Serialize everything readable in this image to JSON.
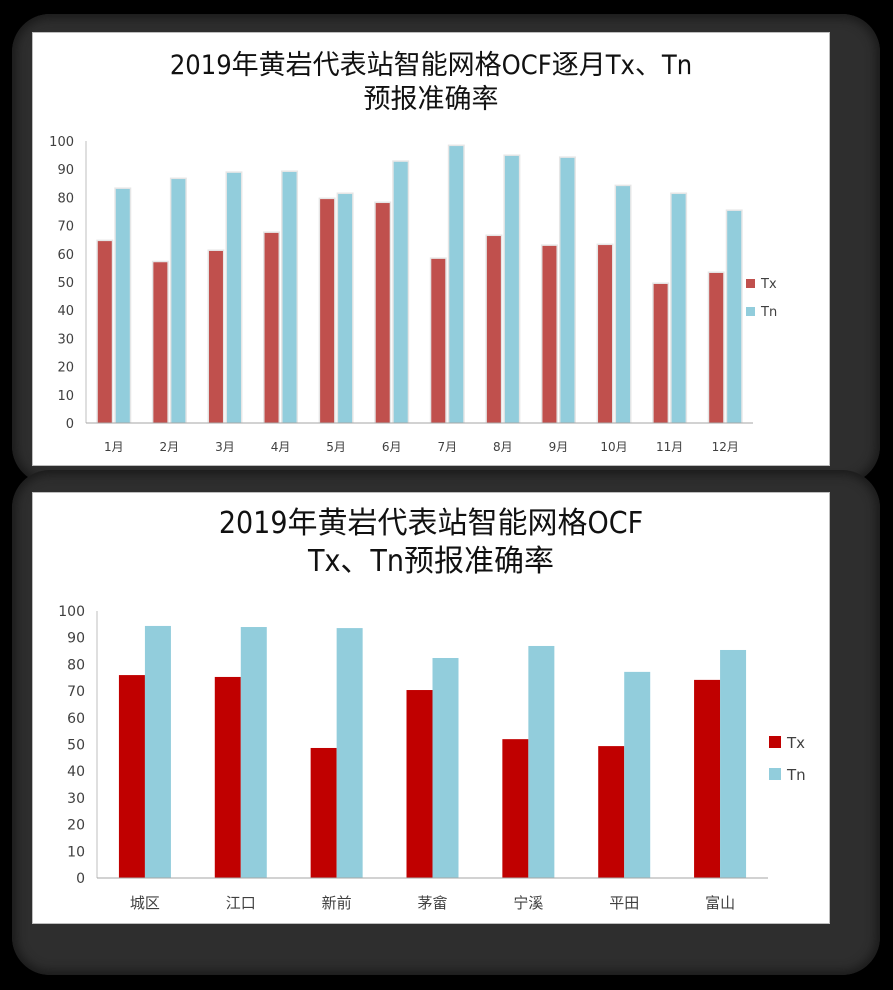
{
  "chart_data": [
    {
      "type": "bar",
      "title": "2019年黄岩代表站智能网格OCF逐月Tx、Tn预报准确率",
      "title_lines": [
        "2019年黄岩代表站智能网格OCF逐月Tx、Tn",
        "预报准确率"
      ],
      "xlabel": "",
      "ylabel": "",
      "ylim": [
        0,
        100
      ],
      "yticks": [
        0,
        10,
        20,
        30,
        40,
        50,
        60,
        70,
        80,
        90,
        100
      ],
      "grid": false,
      "legend_position": "right",
      "categories": [
        "1月",
        "2月",
        "3月",
        "4月",
        "5月",
        "6月",
        "7月",
        "8月",
        "9月",
        "10月",
        "11月",
        "12月"
      ],
      "series": [
        {
          "name": "Tx",
          "color": "#c0504d",
          "values": [
            64.5,
            57.0,
            61.0,
            67.4,
            79.4,
            78.0,
            58.2,
            66.3,
            62.8,
            63.1,
            49.3,
            53.2
          ]
        },
        {
          "name": "Tn",
          "color": "#92cddc",
          "values": [
            83.0,
            86.5,
            88.7,
            89.0,
            81.2,
            92.6,
            98.2,
            94.7,
            94.0,
            84.0,
            81.2,
            75.2
          ]
        }
      ]
    },
    {
      "type": "bar",
      "title": "2019年黄岩代表站智能网格OCF Tx、Tn预报准确率",
      "title_lines": [
        "2019年黄岩代表站智能网格OCF",
        "Tx、Tn预报准确率"
      ],
      "xlabel": "",
      "ylabel": "",
      "ylim": [
        0,
        100
      ],
      "yticks": [
        0,
        10,
        20,
        30,
        40,
        50,
        60,
        70,
        80,
        90,
        100
      ],
      "grid": false,
      "legend_position": "right",
      "categories": [
        "城区",
        "江口",
        "新前",
        "茅畲",
        "宁溪",
        "平田",
        "富山"
      ],
      "series": [
        {
          "name": "Tx",
          "color": "#c00000",
          "values": [
            76.0,
            75.3,
            48.7,
            70.4,
            52.0,
            49.4,
            74.2
          ]
        },
        {
          "name": "Tn",
          "color": "#92cddc",
          "values": [
            94.4,
            94.0,
            93.6,
            82.4,
            86.9,
            77.2,
            85.4
          ]
        }
      ]
    }
  ]
}
